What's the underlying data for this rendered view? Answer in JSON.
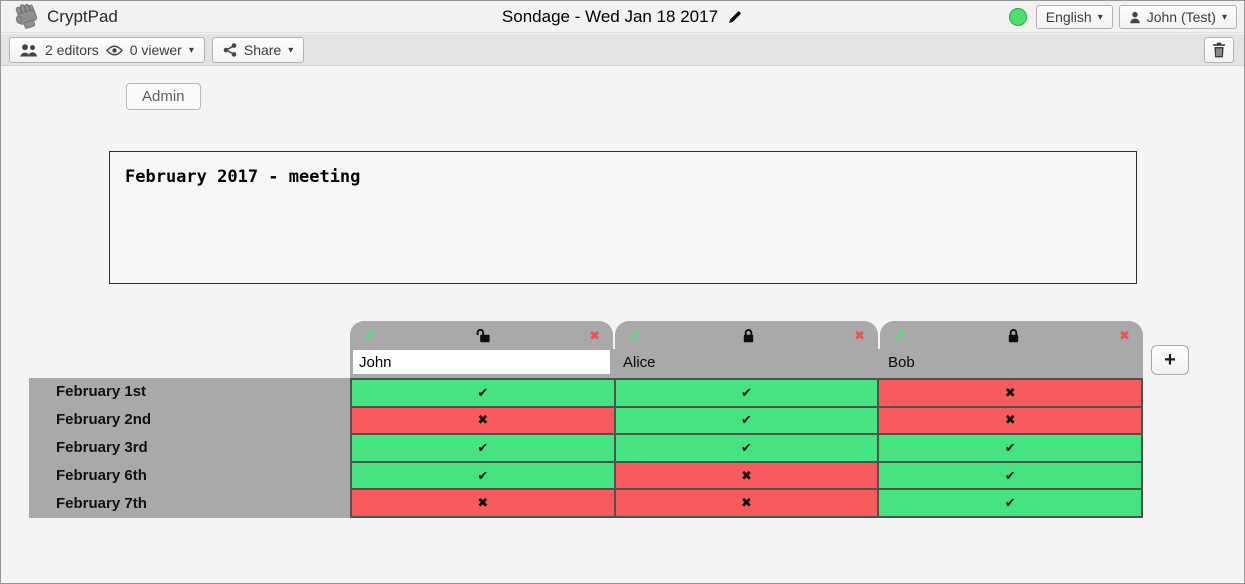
{
  "toolbar": {
    "app_name": "CryptPad",
    "title": "Sondage - Wed Jan 18 2017",
    "editors_label": "2 editors",
    "viewers_label": "0 viewer",
    "share_label": "Share",
    "language": "English",
    "user": "John (Test)",
    "status_color": "#4ee06e"
  },
  "admin_button_label": "Admin",
  "description_text": "February 2017 - meeting",
  "poll": {
    "columns": [
      {
        "name": "John",
        "locked": false
      },
      {
        "name": "Alice",
        "locked": true
      },
      {
        "name": "Bob",
        "locked": true
      }
    ],
    "add_column_label": "+",
    "rows": [
      {
        "label": "February 1st",
        "votes": [
          "yes",
          "yes",
          "no"
        ]
      },
      {
        "label": "February 2nd",
        "votes": [
          "no",
          "yes",
          "no"
        ]
      },
      {
        "label": "February 3rd",
        "votes": [
          "yes",
          "yes",
          "yes"
        ]
      },
      {
        "label": "February 6th",
        "votes": [
          "yes",
          "no",
          "yes"
        ]
      },
      {
        "label": "February 7th",
        "votes": [
          "no",
          "no",
          "yes"
        ]
      }
    ],
    "marks": {
      "yes": "✔",
      "no": "✖"
    },
    "colors": {
      "yes": "#46e381",
      "no": "#f75b5b"
    }
  }
}
